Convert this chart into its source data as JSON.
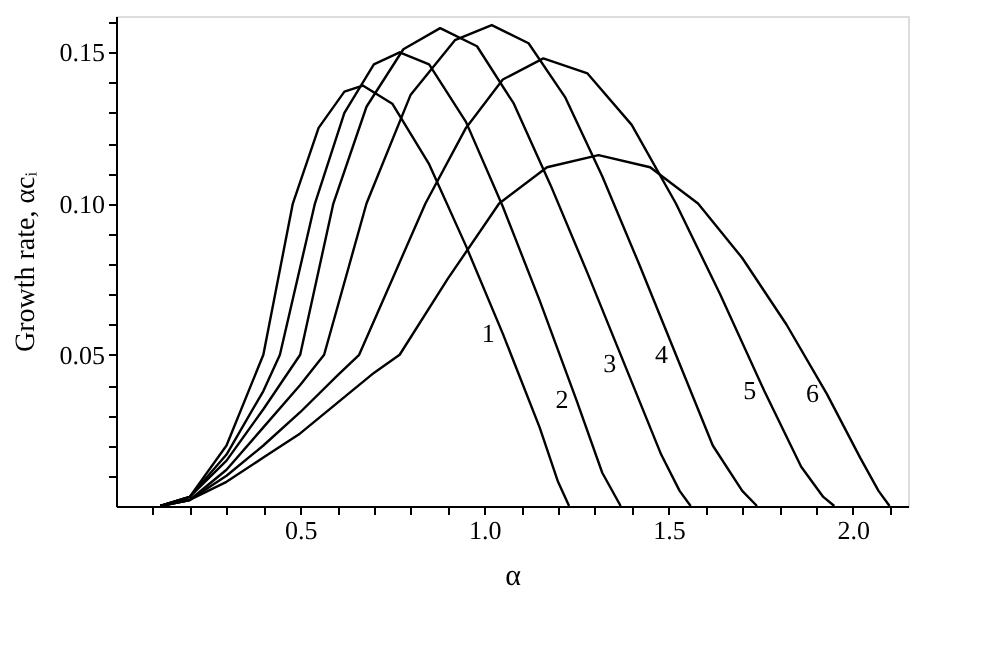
{
  "chart_data": {
    "type": "line",
    "xlabel": "α",
    "ylabel": "Growth rate, αcᵢ",
    "xlim": [
      0,
      2.15
    ],
    "ylim": [
      0,
      0.162
    ],
    "xticks": [
      {
        "value": 0.1,
        "label": null
      },
      {
        "value": 0.2,
        "label": null
      },
      {
        "value": 0.3,
        "label": null
      },
      {
        "value": 0.4,
        "label": null
      },
      0.5,
      {
        "value": 0.6,
        "label": null
      },
      {
        "value": 0.7,
        "label": null
      },
      {
        "value": 0.8,
        "label": null
      },
      {
        "value": 0.9,
        "label": null
      },
      {
        "value": 1.0,
        "label": "1.0"
      },
      {
        "value": 1.1,
        "label": null
      },
      {
        "value": 1.2,
        "label": null
      },
      {
        "value": 1.3,
        "label": null
      },
      {
        "value": 1.4,
        "label": null
      },
      1.5,
      {
        "value": 1.6,
        "label": null
      },
      {
        "value": 1.7,
        "label": null
      },
      {
        "value": 1.8,
        "label": null
      },
      {
        "value": 1.9,
        "label": null
      },
      {
        "value": 2.0,
        "label": "2.0"
      },
      {
        "value": 2.1,
        "label": null
      }
    ],
    "yticks": [
      {
        "value": 0.01,
        "label": null
      },
      {
        "value": 0.02,
        "label": null
      },
      {
        "value": 0.03,
        "label": null
      },
      {
        "value": 0.04,
        "label": null
      },
      0.05,
      {
        "value": 0.06,
        "label": null
      },
      {
        "value": 0.07,
        "label": null
      },
      {
        "value": 0.08,
        "label": null
      },
      {
        "value": 0.09,
        "label": null
      },
      {
        "value": 0.1,
        "label": "0.10"
      },
      {
        "value": 0.11,
        "label": null
      },
      {
        "value": 0.12,
        "label": null
      },
      {
        "value": 0.13,
        "label": null
      },
      {
        "value": 0.14,
        "label": null
      },
      0.15,
      {
        "value": 0.16,
        "label": null
      }
    ],
    "grid": false,
    "legend": false,
    "marker": "none",
    "line_style": "solid",
    "series": [
      {
        "name": "1",
        "color": "#000000",
        "x": [
          0.12,
          0.2,
          0.3,
          0.4,
          0.48,
          0.55,
          0.62,
          0.67,
          0.75,
          0.85,
          0.95,
          1.05,
          1.15,
          1.2,
          1.23
        ],
        "values": [
          0,
          0.003,
          0.02,
          0.05,
          0.1,
          0.125,
          0.137,
          0.139,
          0.133,
          0.113,
          0.086,
          0.057,
          0.026,
          0.008,
          0
        ]
      },
      {
        "name": "2",
        "color": "#000000",
        "x": [
          0.12,
          0.2,
          0.3,
          0.4,
          0.445,
          0.54,
          0.62,
          0.7,
          0.77,
          0.85,
          0.95,
          1.05,
          1.15,
          1.25,
          1.32,
          1.37
        ],
        "values": [
          0,
          0.003,
          0.017,
          0.038,
          0.05,
          0.1,
          0.13,
          0.146,
          0.15,
          0.146,
          0.127,
          0.099,
          0.068,
          0.035,
          0.011,
          0
        ]
      },
      {
        "name": "3",
        "color": "#000000",
        "x": [
          0.12,
          0.2,
          0.3,
          0.4,
          0.5,
          0.59,
          0.68,
          0.78,
          0.88,
          0.98,
          1.08,
          1.18,
          1.28,
          1.38,
          1.48,
          1.53,
          1.56
        ],
        "values": [
          0,
          0.003,
          0.015,
          0.032,
          0.05,
          0.1,
          0.132,
          0.151,
          0.158,
          0.152,
          0.133,
          0.106,
          0.077,
          0.047,
          0.017,
          0.005,
          0
        ]
      },
      {
        "name": "4",
        "color": "#000000",
        "x": [
          0.12,
          0.2,
          0.3,
          0.4,
          0.5,
          0.565,
          0.68,
          0.8,
          0.92,
          1.02,
          1.12,
          1.22,
          1.32,
          1.42,
          1.52,
          1.62,
          1.7,
          1.74
        ],
        "values": [
          0,
          0.002,
          0.012,
          0.026,
          0.04,
          0.05,
          0.1,
          0.136,
          0.154,
          0.159,
          0.153,
          0.135,
          0.109,
          0.08,
          0.05,
          0.02,
          0.005,
          0
        ]
      },
      {
        "name": "5",
        "color": "#000000",
        "x": [
          0.12,
          0.2,
          0.3,
          0.4,
          0.5,
          0.6,
          0.66,
          0.75,
          0.84,
          0.95,
          1.05,
          1.16,
          1.28,
          1.4,
          1.52,
          1.64,
          1.76,
          1.86,
          1.92,
          1.95
        ],
        "values": [
          0,
          0.002,
          0.01,
          0.02,
          0.031,
          0.043,
          0.05,
          0.075,
          0.1,
          0.125,
          0.141,
          0.148,
          0.143,
          0.126,
          0.1,
          0.07,
          0.038,
          0.013,
          0.003,
          0
        ]
      },
      {
        "name": "6",
        "color": "#000000",
        "x": [
          0.12,
          0.2,
          0.3,
          0.4,
          0.5,
          0.6,
          0.7,
          0.77,
          0.9,
          1.04,
          1.17,
          1.31,
          1.45,
          1.58,
          1.7,
          1.82,
          1.93,
          2.02,
          2.07,
          2.1
        ],
        "values": [
          0,
          0.002,
          0.008,
          0.016,
          0.024,
          0.034,
          0.044,
          0.05,
          0.075,
          0.1,
          0.112,
          0.116,
          0.112,
          0.1,
          0.082,
          0.06,
          0.037,
          0.016,
          0.005,
          0
        ]
      }
    ]
  }
}
